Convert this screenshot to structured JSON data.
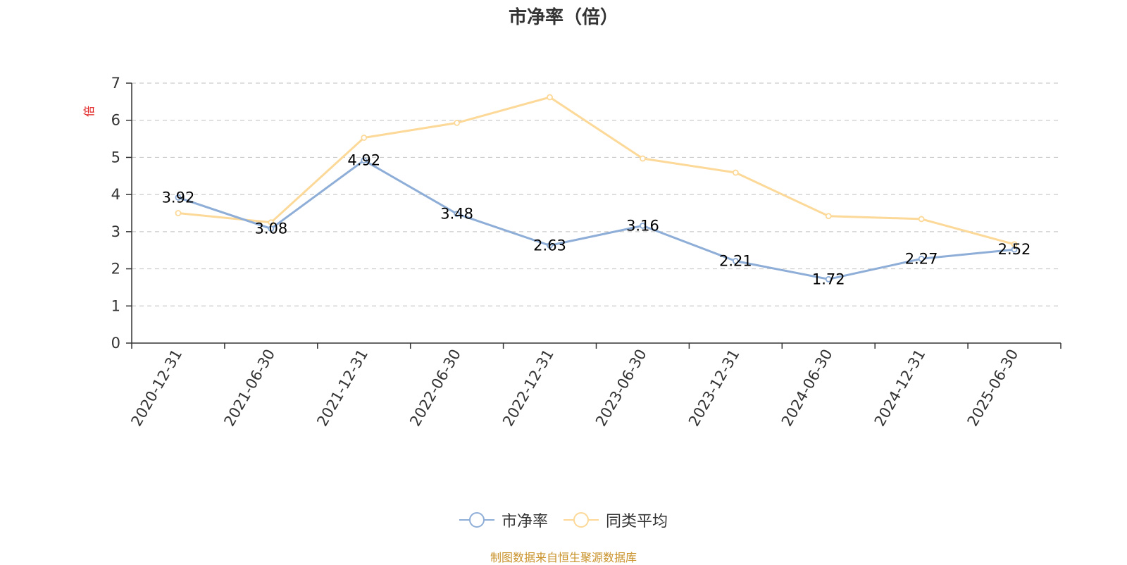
{
  "chart_data": {
    "type": "line",
    "title": "市净率（倍）",
    "ylabel": "倍",
    "xlabel": "",
    "categories": [
      "2020-12-31",
      "2021-06-30",
      "2021-12-31",
      "2022-06-30",
      "2022-12-31",
      "2023-06-30",
      "2023-12-31",
      "2024-06-30",
      "2024-12-31",
      "2025-06-30"
    ],
    "ylim": [
      0,
      7
    ],
    "yticks": [
      "0",
      "1",
      "2",
      "3",
      "4",
      "5",
      "6",
      "7"
    ],
    "grid": true,
    "legend_position": "bottom",
    "series": [
      {
        "name": "市净率",
        "values": [
          3.92,
          3.08,
          4.92,
          3.48,
          2.63,
          3.16,
          2.21,
          1.72,
          2.27,
          2.52
        ],
        "labels": [
          "3.92",
          "3.08",
          "4.92",
          "3.48",
          "2.63",
          "3.16",
          "2.21",
          "1.72",
          "2.27",
          "2.52"
        ],
        "color": "#8eaed8"
      },
      {
        "name": "同类平均",
        "values": [
          3.5,
          3.25,
          5.53,
          5.93,
          6.62,
          4.97,
          4.59,
          3.42,
          3.34,
          2.66
        ],
        "color": "#fcd998"
      }
    ]
  },
  "source_note": "制图数据来自恒生聚源数据库",
  "colors": {
    "axis_label": "#e02020",
    "source_note": "#c9922a",
    "text": "#333333",
    "grid": "#cccccc"
  }
}
